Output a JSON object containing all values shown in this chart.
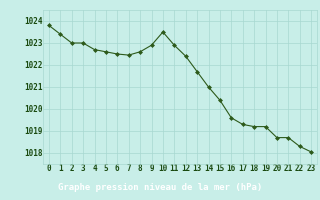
{
  "x": [
    0,
    1,
    2,
    3,
    4,
    5,
    6,
    7,
    8,
    9,
    10,
    11,
    12,
    13,
    14,
    15,
    16,
    17,
    18,
    19,
    20,
    21,
    22,
    23
  ],
  "y": [
    1023.8,
    1023.4,
    1023.0,
    1023.0,
    1022.7,
    1022.6,
    1022.5,
    1022.45,
    1022.6,
    1022.9,
    1023.5,
    1022.9,
    1022.4,
    1021.7,
    1021.0,
    1020.4,
    1019.6,
    1019.3,
    1019.2,
    1019.2,
    1018.7,
    1018.7,
    1018.3,
    1018.05
  ],
  "ylim": [
    1017.5,
    1024.5
  ],
  "yticks": [
    1018,
    1019,
    1020,
    1021,
    1022,
    1023,
    1024
  ],
  "xticks": [
    0,
    1,
    2,
    3,
    4,
    5,
    6,
    7,
    8,
    9,
    10,
    11,
    12,
    13,
    14,
    15,
    16,
    17,
    18,
    19,
    20,
    21,
    22,
    23
  ],
  "xlabel": "Graphe pression niveau de la mer (hPa)",
  "line_color": "#2d5a1b",
  "marker": "D",
  "marker_size": 2.0,
  "bg_color": "#c8eee8",
  "grid_color": "#a8d8d0",
  "xlabel_color": "#1a4a10",
  "tick_color": "#1a4a10",
  "axis_label_fontsize": 6.5,
  "tick_fontsize": 5.5,
  "bottom_bar_color": "#3a7a28",
  "bottom_bar_height": 0.13
}
